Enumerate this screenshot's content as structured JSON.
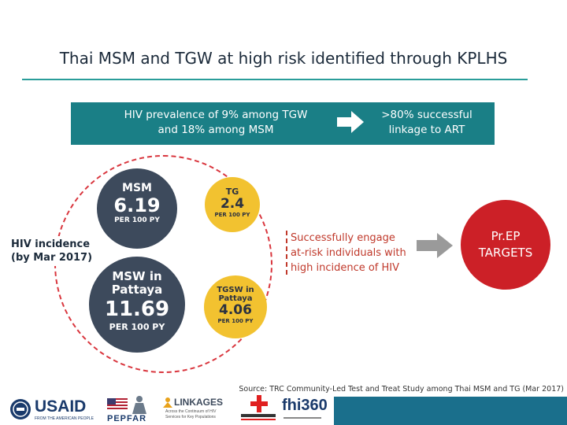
{
  "title": "Thai MSM and TGW at high risk identified through KPLHS",
  "banner": {
    "left_line1": "HIV prevalence of 9% among TGW",
    "left_line2": "and 18% among MSM",
    "right_line1": ">80% successful",
    "right_line2": "linkage to ART"
  },
  "incidence": {
    "label_line1": "HIV incidence",
    "label_line2": "(by Mar 2017)",
    "bubbles": [
      {
        "label": "MSM",
        "value": "6.19",
        "unit": "PER 100 PY",
        "color": "#3d4a5c"
      },
      {
        "label": "TG",
        "value": "2.4",
        "unit": "PER 100 PY",
        "color": "#f2c230"
      },
      {
        "label_line1": "MSW in",
        "label_line2": "Pattaya",
        "value": "11.69",
        "unit": "PER 100 PY",
        "color": "#3d4a5c"
      },
      {
        "label_line1": "TGSW in",
        "label_line2": "Pattaya",
        "value": "4.06",
        "unit": "PER 100 PY",
        "color": "#f2c230"
      }
    ]
  },
  "engage": {
    "line1": "Successfully engage",
    "line2": "at-risk individuals with",
    "line3": "high incidence of HIV"
  },
  "prep": {
    "line1": "Pr.EP",
    "line2": "TARGETS",
    "color": "#cc2027"
  },
  "source": "Source: TRC Community-Led Test and Treat Study among Thai MSM and TG (Mar 2017)",
  "logos": {
    "usaid": "USAID",
    "usaid_sub": "FROM THE AMERICAN PEOPLE",
    "pepfar": "PEPFAR",
    "linkages": "LINKAGES",
    "linkages_sub1": "Across the Continuum of HIV",
    "linkages_sub2": "Services for Key Populations",
    "fhi": "fhi360"
  },
  "colors": {
    "teal": "#1a7f86",
    "accent_line": "#2a9d9a",
    "red": "#cc2027"
  }
}
